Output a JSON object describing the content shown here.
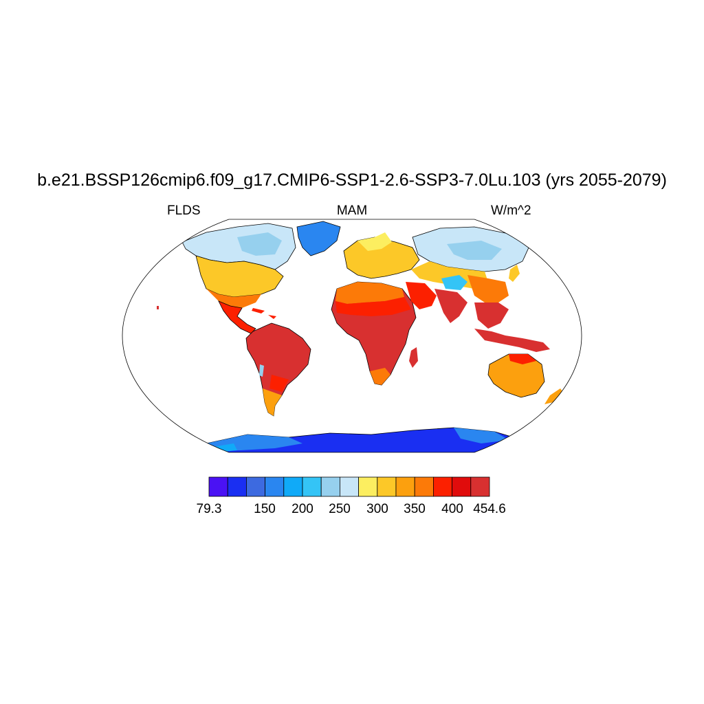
{
  "title": "b.e21.BSSP126cmip6.f09_g17.CMIP6-SSP1-2.6-SSP3-7.0Lu.103 (yrs 2055-2079)",
  "left_label": "FLDS",
  "center_label": "MAM",
  "right_label": "W/m^2",
  "colorbar": {
    "colors": [
      "#4a12f4",
      "#1a2ff2",
      "#3d6ae0",
      "#2a86f0",
      "#10aaf8",
      "#34c4f6",
      "#96d0ee",
      "#c8e6f8",
      "#fcee60",
      "#fcc828",
      "#fca00e",
      "#fc7a08",
      "#fc2000",
      "#e00c0c",
      "#d83030"
    ],
    "labels": [
      {
        "text": "79.3",
        "index": 0
      },
      {
        "text": "150",
        "index": 2
      },
      {
        "text": "200",
        "index": 3
      },
      {
        "text": "250",
        "index": 4
      },
      {
        "text": "300",
        "index": 5
      },
      {
        "text": "350",
        "index": 6
      },
      {
        "text": "400",
        "index": 7
      },
      {
        "text": "454.6",
        "index": 8
      }
    ]
  }
}
